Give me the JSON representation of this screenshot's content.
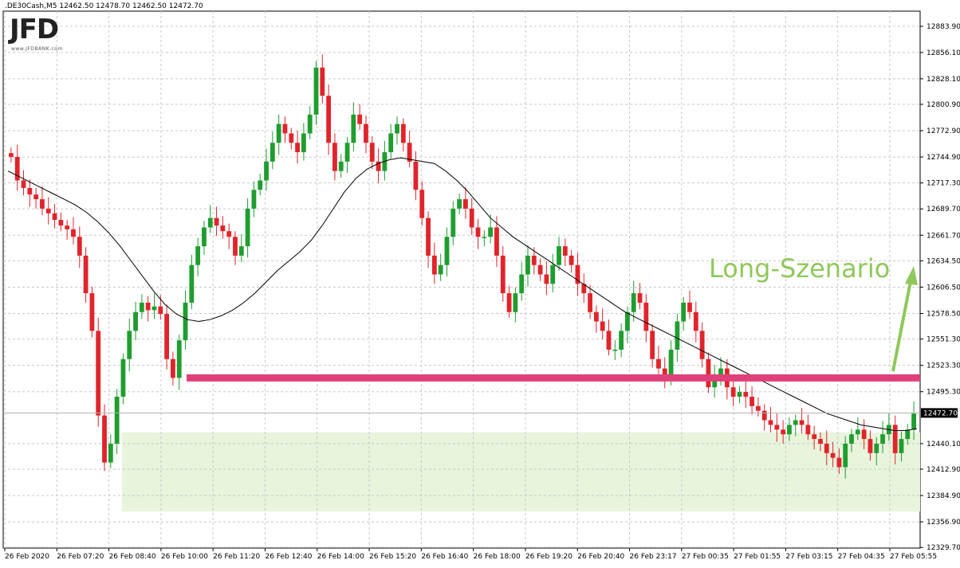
{
  "header": {
    "symbol": ".DE30Cash,M5",
    "ohlc": "12462.50 12478.70 12462.50 12472.70"
  },
  "logo": {
    "text": "JFD",
    "subtext": "www.JFDBANK.com"
  },
  "annotation": {
    "text": "Long-Szenario",
    "color": "#8fc85a"
  },
  "chart_data": {
    "type": "candlestick",
    "title": "",
    "xlabel": "",
    "ylabel": "",
    "ylim": [
      12329.0,
      12900.0
    ],
    "y_ticks": [
      "12883.90",
      "12856.10",
      "12828.10",
      "12800.90",
      "12772.90",
      "12744.90",
      "12717.30",
      "12689.70",
      "12661.70",
      "12634.50",
      "12606.50",
      "12578.50",
      "12551.30",
      "12523.30",
      "12495.30",
      "12440.10",
      "12412.90",
      "12384.90",
      "12356.90",
      "12329.70"
    ],
    "x_ticks": [
      "26 Feb 2020",
      "26 Feb 07:20",
      "26 Feb 08:40",
      "26 Feb 10:00",
      "26 Feb 11:20",
      "26 Feb 12:40",
      "26 Feb 14:00",
      "26 Feb 15:20",
      "26 Feb 16:40",
      "26 Feb 18:00",
      "26 Feb 19:20",
      "26 Feb 20:40",
      "26 Feb 23:17",
      "27 Feb 00:35",
      "27 Feb 01:55",
      "27 Feb 03:15",
      "27 Feb 04:35",
      "27 Feb 05:55"
    ],
    "current_price": "12472.70",
    "series": [
      {
        "kind": "close-path",
        "values": [
          12745,
          12720,
          12712,
          12705,
          12700,
          12690,
          12685,
          12678,
          12672,
          12668,
          12660,
          12640,
          12600,
          12560,
          12470,
          12420,
          12440,
          12490,
          12530,
          12560,
          12580,
          12590,
          12582,
          12586,
          12578,
          12530,
          12510,
          12550,
          12590,
          12630,
          12650,
          12670,
          12680,
          12672,
          12666,
          12660,
          12640,
          12650,
          12690,
          12710,
          12720,
          12740,
          12760,
          12780,
          12770,
          12760,
          12750,
          12770,
          12790,
          12840,
          12810,
          12760,
          12730,
          12740,
          12760,
          12790,
          12780,
          12760,
          12740,
          12730,
          12750,
          12770,
          12780,
          12760,
          12740,
          12710,
          12680,
          12640,
          12620,
          12630,
          12660,
          12690,
          12700,
          12690,
          12670,
          12660,
          12660,
          12670,
          12640,
          12600,
          12580,
          12600,
          12620,
          12640,
          12630,
          12620,
          12610,
          12630,
          12650,
          12640,
          12630,
          12610,
          12600,
          12580,
          12570,
          12560,
          12540,
          12540,
          12560,
          12580,
          12600,
          12590,
          12560,
          12530,
          12520,
          12510,
          12540,
          12570,
          12590,
          12580,
          12560,
          12530,
          12500,
          12510,
          12520,
          12500,
          12490,
          12495,
          12490,
          12480,
          12475,
          12465,
          12460,
          12455,
          12450,
          12460,
          12465,
          12460,
          12450,
          12445,
          12440,
          12430,
          12425,
          12415,
          12440,
          12450,
          12455,
          12445,
          12430,
          12440,
          12450,
          12460,
          12430,
          12445,
          12455,
          12472
        ]
      },
      {
        "kind": "moving-average",
        "color": "#000000",
        "values": [
          12730,
          12724,
          12718,
          12712,
          12706,
          12700,
          12694,
          12686,
          12676,
          12664,
          12650,
          12634,
          12618,
          12602,
          12588,
          12578,
          12572,
          12570,
          12572,
          12576,
          12582,
          12590,
          12600,
          12612,
          12624,
          12634,
          12644,
          12656,
          12672,
          12690,
          12708,
          12722,
          12732,
          12738,
          12742,
          12744,
          12742,
          12740,
          12738,
          12730,
          12720,
          12708,
          12694,
          12680,
          12670,
          12660,
          12652,
          12644,
          12636,
          12628,
          12620,
          12612,
          12604,
          12596,
          12588,
          12580,
          12574,
          12568,
          12562,
          12556,
          12550,
          12544,
          12538,
          12532,
          12526,
          12520,
          12514,
          12508,
          12502,
          12496,
          12490,
          12484,
          12478,
          12472,
          12468,
          12464,
          12460,
          12458,
          12456,
          12454,
          12454,
          12456
        ]
      }
    ],
    "support_line": {
      "value": 12510.0,
      "color": "#e0407a"
    },
    "demand_zone": {
      "from": 12368.0,
      "to": 12452.0,
      "color": "#e8f4dc"
    },
    "arrow": {
      "color": "#8fc85a"
    }
  }
}
